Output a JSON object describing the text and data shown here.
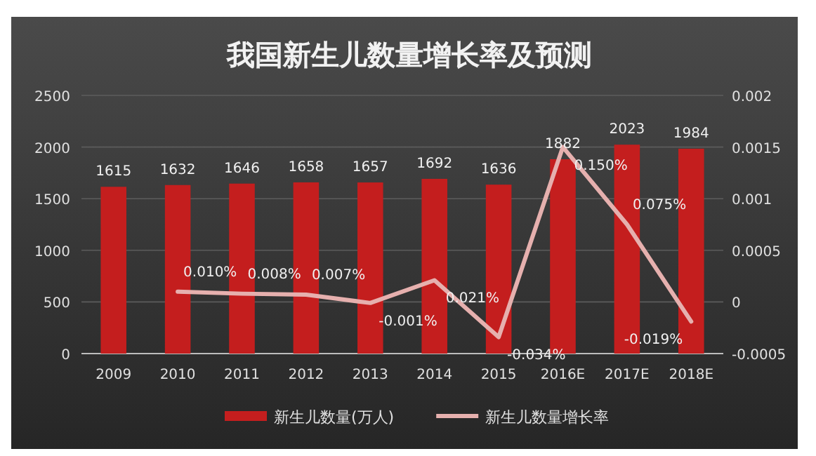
{
  "chart_data": {
    "type": "bar",
    "title": "我国新生儿数量增长率及预测",
    "categories": [
      "2009",
      "2010",
      "2011",
      "2012",
      "2013",
      "2014",
      "2015",
      "2016E",
      "2017E",
      "2018E"
    ],
    "series": [
      {
        "name": "新生儿数量(万人)",
        "color": "#c41e1e",
        "values": [
          1615,
          1632,
          1646,
          1658,
          1657,
          1692,
          1636,
          1882,
          2023,
          1984
        ]
      },
      {
        "name": "新生儿数量增长率",
        "type": "line",
        "axis": "y2",
        "color": "#e6b0ae",
        "values": [
          null,
          0.0001,
          8e-05,
          7e-05,
          -1e-05,
          0.00021,
          -0.00034,
          0.0015,
          0.00075,
          -0.00019
        ],
        "value_labels": [
          null,
          "0.010%",
          "0.008%",
          "0.007%",
          "-0.001%",
          "0.021%",
          "-0.034%",
          "0.150%",
          "0.075%",
          "-0.019%"
        ]
      }
    ],
    "data_labels": true,
    "ylim": [
      0,
      2500
    ],
    "yticks": [
      0,
      500,
      1000,
      1500,
      2000,
      2500
    ],
    "y2lim": [
      -0.0005,
      0.002
    ],
    "y2ticks": [
      -0.0005,
      0,
      0.0005,
      0.001,
      0.0015,
      0.002
    ],
    "grid": "y",
    "legend": "bottom",
    "marker": "none"
  }
}
